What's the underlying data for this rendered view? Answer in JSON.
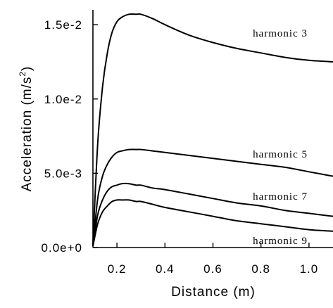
{
  "chart_data": {
    "type": "line",
    "xlabel": "Distance (m)",
    "ylabel": "Acceleration (m/s",
    "ylabel_sup": "2",
    "ylabel_close": ")",
    "xlim": [
      0.1,
      1.1
    ],
    "ylim": [
      0,
      0.016
    ],
    "grid": false,
    "x_ticks": [
      {
        "value": 0.2,
        "label": "0.2"
      },
      {
        "value": 0.4,
        "label": "0.4"
      },
      {
        "value": 0.6,
        "label": "0.6"
      },
      {
        "value": 0.8,
        "label": "0.8"
      },
      {
        "value": 1.0,
        "label": "1.0"
      }
    ],
    "y_ticks": [
      {
        "value": 0.0,
        "label": "0.0e+0"
      },
      {
        "value": 0.005,
        "label": "5.0e-3"
      },
      {
        "value": 0.01,
        "label": "1.0e-2"
      },
      {
        "value": 0.015,
        "label": "1.5e-2"
      }
    ],
    "series": [
      {
        "name": "harmonic 3",
        "x": [
          0.1,
          0.12,
          0.14,
          0.16,
          0.18,
          0.2,
          0.22,
          0.25,
          0.28,
          0.3,
          0.35,
          0.4,
          0.5,
          0.6,
          0.7,
          0.8,
          0.9,
          1.0,
          1.1
        ],
        "y": [
          0.0002,
          0.007,
          0.0108,
          0.0131,
          0.0145,
          0.0152,
          0.0155,
          0.0157,
          0.0157,
          0.0157,
          0.0154,
          0.015,
          0.0143,
          0.0138,
          0.0134,
          0.0131,
          0.0128,
          0.0126,
          0.0125
        ]
      },
      {
        "name": "harmonic 5",
        "x": [
          0.1,
          0.12,
          0.14,
          0.16,
          0.18,
          0.2,
          0.22,
          0.25,
          0.28,
          0.3,
          0.35,
          0.4,
          0.5,
          0.6,
          0.7,
          0.8,
          0.9,
          1.0,
          1.1
        ],
        "y": [
          0.0001,
          0.0033,
          0.0048,
          0.0056,
          0.0061,
          0.0064,
          0.0065,
          0.0066,
          0.0066,
          0.0066,
          0.0065,
          0.0064,
          0.0062,
          0.006,
          0.0058,
          0.0056,
          0.0054,
          0.0051,
          0.0048
        ]
      },
      {
        "name": "harmonic 7",
        "x": [
          0.1,
          0.12,
          0.14,
          0.16,
          0.18,
          0.2,
          0.22,
          0.25,
          0.28,
          0.3,
          0.35,
          0.4,
          0.5,
          0.6,
          0.7,
          0.8,
          0.9,
          1.0,
          1.1
        ],
        "y": [
          0.0001,
          0.0022,
          0.0032,
          0.0038,
          0.0041,
          0.0042,
          0.0043,
          0.0043,
          0.0042,
          0.0042,
          0.004,
          0.0039,
          0.0036,
          0.0033,
          0.003,
          0.0028,
          0.0025,
          0.0023,
          0.0021
        ]
      },
      {
        "name": "harmonic 9",
        "x": [
          0.1,
          0.12,
          0.14,
          0.16,
          0.18,
          0.2,
          0.22,
          0.25,
          0.28,
          0.3,
          0.35,
          0.4,
          0.5,
          0.6,
          0.7,
          0.8,
          0.9,
          1.0,
          1.1
        ],
        "y": [
          0.0001,
          0.0016,
          0.0024,
          0.0028,
          0.0031,
          0.0032,
          0.0032,
          0.0032,
          0.0031,
          0.0031,
          0.0029,
          0.0027,
          0.0024,
          0.0021,
          0.0018,
          0.0016,
          0.0014,
          0.0012,
          0.0011
        ]
      }
    ]
  }
}
